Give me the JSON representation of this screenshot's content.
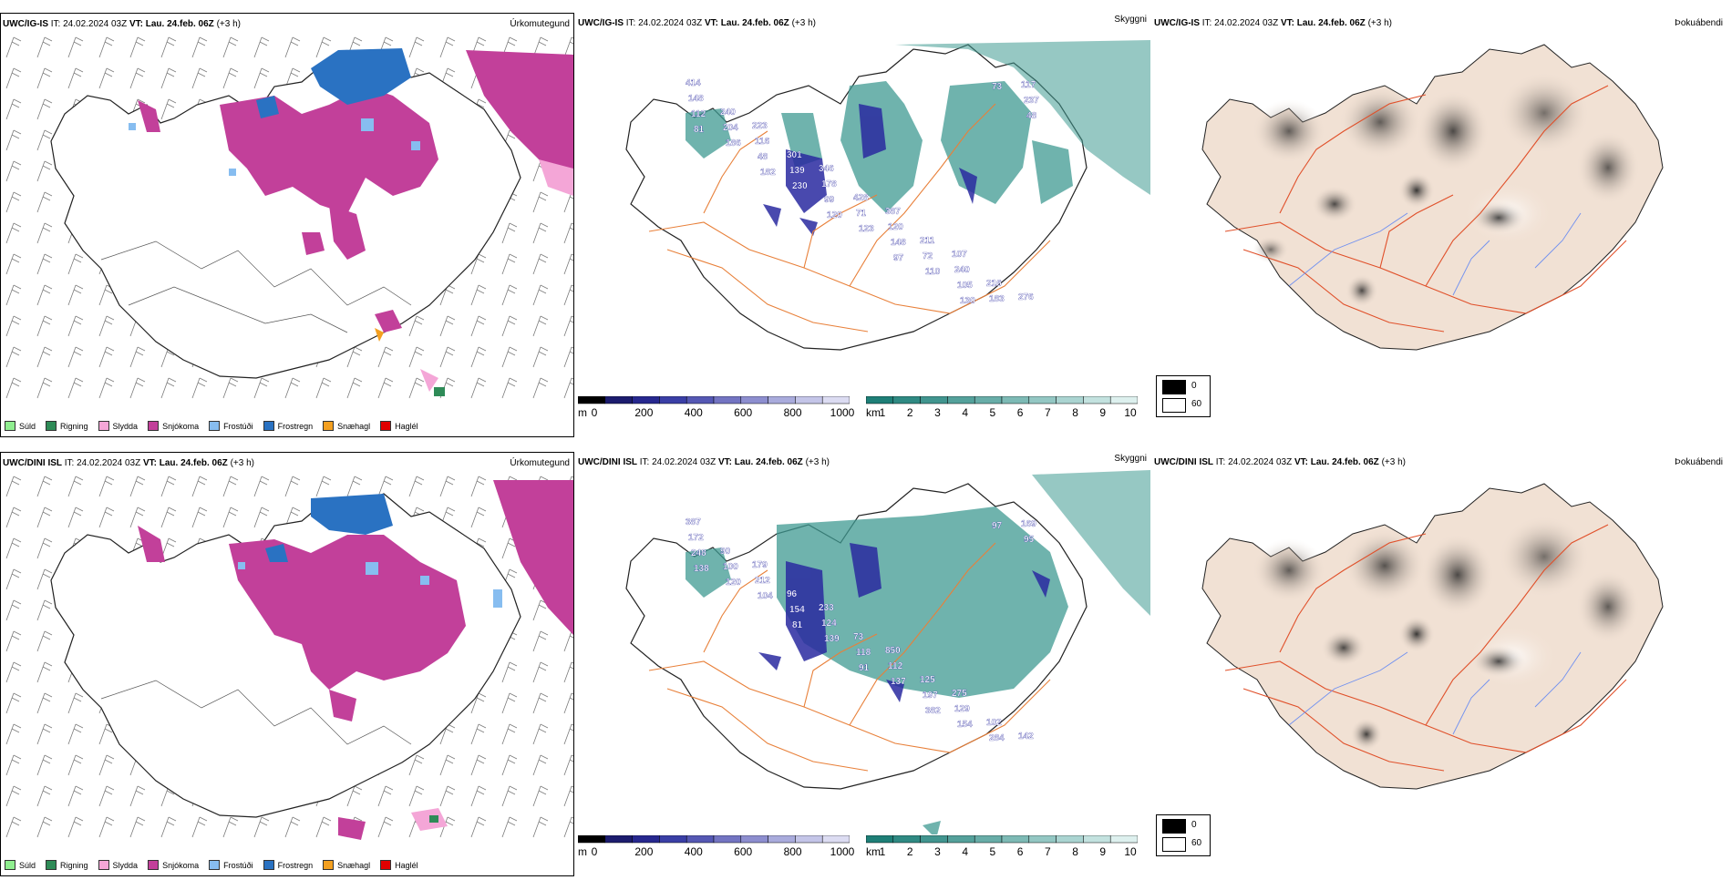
{
  "rows": [
    {
      "model": "UWC/IG-IS",
      "it_label": "IT:",
      "it": "24.02.2024 03Z",
      "vt_label": "VT:",
      "vt": "Lau. 24.feb. 06Z",
      "lead": "(+3 h)",
      "titles": [
        "Úrkomutegund",
        "Skyggni",
        "Þokuábendi"
      ],
      "cloud_labels": [
        "414",
        "223",
        "346",
        "387",
        "107",
        "276",
        "240",
        "301",
        "428",
        "211",
        "216",
        "148",
        "116",
        "178",
        "120",
        "240",
        "117",
        "204",
        "139",
        "71",
        "72",
        "183",
        "112",
        "48",
        "99",
        "148",
        "105",
        "237",
        "186",
        "230",
        "123",
        "110",
        "73",
        "81",
        "182",
        "120",
        "97",
        "130",
        "48"
      ]
    },
    {
      "model": "UWC/DINI ISL",
      "it_label": "IT:",
      "it": "24.02.2024 03Z",
      "vt_label": "VT:",
      "vt": "Lau. 24.feb. 06Z",
      "lead": "(+3 h)",
      "titles": [
        "Úrkomutegund",
        "Skyggni",
        "Þokuábendi"
      ],
      "cloud_labels": [
        "387",
        "179",
        "233",
        "850",
        "275",
        "142",
        "90",
        "96",
        "73",
        "125",
        "102",
        "172",
        "212",
        "124",
        "112",
        "129",
        "169",
        "100",
        "154",
        "118",
        "197",
        "284",
        "248",
        "104",
        "139",
        "137",
        "154",
        "95",
        "120",
        "81",
        "91",
        "382",
        "97",
        "138"
      ]
    }
  ],
  "precip_legend": [
    {
      "label": "Súld",
      "color": "#90ee90"
    },
    {
      "label": "Rigning",
      "color": "#2e8b57"
    },
    {
      "label": "Slydda",
      "color": "#f4a6d7"
    },
    {
      "label": "Snjókoma",
      "color": "#c2409a"
    },
    {
      "label": "Frostúði",
      "color": "#87bdf0"
    },
    {
      "label": "Frostregn",
      "color": "#2a72c2"
    },
    {
      "label": "Snæhagl",
      "color": "#f4a020"
    },
    {
      "label": "Haglél",
      "color": "#e00000"
    }
  ],
  "cloud_base_bar": {
    "unit": "m",
    "ticks": [
      "0",
      "200",
      "400",
      "600",
      "800",
      "1000"
    ],
    "colors": [
      "#000000",
      "#1c1c6e",
      "#27288f",
      "#3a3fa6",
      "#5558b4",
      "#7374c2",
      "#8d8ecf",
      "#a9abdc",
      "#c4c5e8",
      "#dcdcf2"
    ]
  },
  "visibility_bar": {
    "unit": "km",
    "ticks": [
      "1",
      "2",
      "3",
      "4",
      "5",
      "6",
      "7",
      "8",
      "9",
      "10"
    ],
    "colors": [
      "#1e7f77",
      "#2f8a83",
      "#41958f",
      "#54a19b",
      "#68ada8",
      "#7dbab5",
      "#93c7c3",
      "#aad4d1",
      "#c3e2df",
      "#ddf0ee"
    ]
  },
  "fog_legend": [
    "0",
    "60"
  ],
  "colors": {
    "snow": "#c2409a",
    "freezing_rain": "#2a72c2",
    "freezing_drizzle": "#87bdf0",
    "rain": "#2e8b57",
    "sleet": "#f4a6d7",
    "visibility": "#3f9a92",
    "cloudbase": "#2a2aa0",
    "roads": "#e8803a",
    "land_fog": "#f1e1d4",
    "red_roads": "#e0502a",
    "rivers": "#7090f0"
  }
}
